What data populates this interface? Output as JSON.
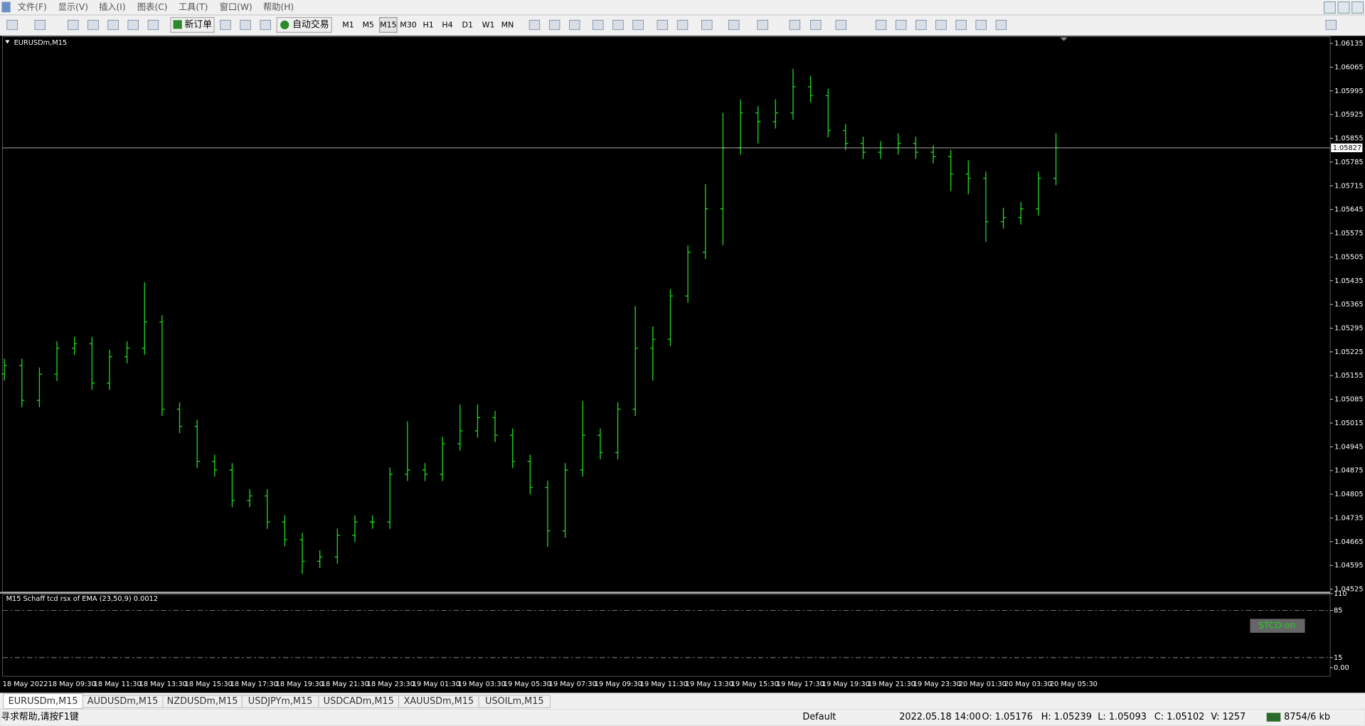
{
  "menu": [
    "文件(F)",
    "显示(V)",
    "插入(I)",
    "图表(C)",
    "工具(T)",
    "窗口(W)",
    "帮助(H)"
  ],
  "toolbar": {
    "new_order": "新订单",
    "auto_trading": "自动交易",
    "timeframes": [
      "M1",
      "M5",
      "M15",
      "M30",
      "H1",
      "H4",
      "D1",
      "W1",
      "MN"
    ]
  },
  "chart_data": {
    "type": "ohlc",
    "title": "EURUSDm,M15",
    "color": "#1fd31f",
    "open": [
      1.0516,
      1.05185,
      1.05082,
      1.05159,
      1.05236,
      1.05249,
      1.05133,
      1.05211,
      1.05236,
      1.05313,
      1.05056,
      1.05005,
      1.04902,
      1.04877,
      1.04787,
      1.048,
      1.04723,
      1.04671,
      1.04607,
      1.0462,
      1.04684,
      1.04723,
      1.04723,
      1.04864,
      1.04877,
      1.04864,
      1.04954,
      1.04992,
      1.05031,
      1.04979,
      1.04902,
      1.04825,
      1.04697,
      1.04877,
      1.04979,
      1.04928,
      1.05056,
      1.05236,
      1.05262,
      1.0539,
      1.05519,
      1.05647,
      1.05827,
      1.0593,
      1.05904,
      1.0593,
      1.06007,
      1.05981,
      1.05878,
      1.0584,
      1.05814,
      1.05827,
      1.0584,
      1.05814,
      1.05801,
      1.0575,
      1.05737,
      1.05609,
      1.05621,
      1.05647,
      1.05737
    ],
    "high": [
      1.05205,
      1.05205,
      1.05179,
      1.05256,
      1.05269,
      1.05269,
      1.05231,
      1.05256,
      1.0543,
      1.05333,
      1.05076,
      1.05025,
      1.04922,
      1.04897,
      1.0482,
      1.0482,
      1.04743,
      1.04691,
      1.0464,
      1.04704,
      1.04743,
      1.04743,
      1.04884,
      1.0502,
      1.04897,
      1.04974,
      1.0507,
      1.0507,
      1.05051,
      1.04999,
      1.04922,
      1.04845,
      1.04897,
      1.0508,
      1.04999,
      1.05076,
      1.0536,
      1.053,
      1.0541,
      1.05539,
      1.0572,
      1.0593,
      1.0597,
      1.0595,
      1.0597,
      1.0606,
      1.0604,
      1.06001,
      1.05898,
      1.0586,
      1.05847,
      1.0587,
      1.0586,
      1.05834,
      1.05821,
      1.0579,
      1.05757,
      1.0565,
      1.05667,
      1.05757,
      1.0587
    ],
    "low": [
      1.0514,
      1.05062,
      1.05062,
      1.05139,
      1.05216,
      1.05113,
      1.05113,
      1.05191,
      1.05216,
      1.05036,
      1.04985,
      1.04882,
      1.04857,
      1.04767,
      1.04767,
      1.04703,
      1.04651,
      1.0457,
      1.04587,
      1.046,
      1.04664,
      1.04703,
      1.04703,
      1.04844,
      1.04844,
      1.04844,
      1.04934,
      1.04972,
      1.04959,
      1.04882,
      1.04805,
      1.0465,
      1.04677,
      1.04857,
      1.04908,
      1.04908,
      1.05036,
      1.0514,
      1.05242,
      1.0537,
      1.05499,
      1.0554,
      1.05807,
      1.0584,
      1.05884,
      1.0591,
      1.05961,
      1.05858,
      1.0582,
      1.05794,
      1.05794,
      1.05807,
      1.05794,
      1.05781,
      1.057,
      1.0569,
      1.0555,
      1.05589,
      1.05601,
      1.05627,
      1.05717
    ],
    "close": [
      1.05185,
      1.05082,
      1.05159,
      1.05236,
      1.05249,
      1.05133,
      1.05211,
      1.05236,
      1.05313,
      1.05056,
      1.05005,
      1.04902,
      1.04877,
      1.04787,
      1.048,
      1.04723,
      1.04671,
      1.04607,
      1.0462,
      1.04684,
      1.04723,
      1.04723,
      1.04864,
      1.04877,
      1.04864,
      1.04954,
      1.04992,
      1.05031,
      1.04979,
      1.04902,
      1.04825,
      1.04697,
      1.04877,
      1.04979,
      1.04928,
      1.05056,
      1.05236,
      1.05262,
      1.0539,
      1.05519,
      1.05647,
      1.05827,
      1.0593,
      1.05904,
      1.0593,
      1.06007,
      1.05981,
      1.05878,
      1.0584,
      1.05814,
      1.05827,
      1.0584,
      1.05814,
      1.05801,
      1.0575,
      1.05737,
      1.05609,
      1.05621,
      1.05647,
      1.05737,
      1.05827
    ],
    "ylim": [
      1.04517,
      1.06155
    ],
    "yticks": [
      1.06135,
      1.06065,
      1.05995,
      1.05925,
      1.05855,
      1.05785,
      1.05715,
      1.05645,
      1.05575,
      1.05505,
      1.05435,
      1.05365,
      1.05295,
      1.05225,
      1.05155,
      1.05085,
      1.05015,
      1.04945,
      1.04875,
      1.04805,
      1.04735,
      1.04665,
      1.04595,
      1.04525
    ],
    "current_price": 1.05827,
    "x_labels": [
      "18 May 2022",
      "18 May 09:30",
      "18 May 11:30",
      "18 May 13:30",
      "18 May 15:30",
      "18 May 17:30",
      "18 May 19:30",
      "18 May 21:30",
      "18 May 23:30",
      "19 May 01:30",
      "19 May 03:30",
      "19 May 05:30",
      "19 May 07:30",
      "19 May 09:30",
      "19 May 11:30",
      "19 May 13:30",
      "19 May 15:30",
      "19 May 17:30",
      "19 May 19:30",
      "19 May 21:30",
      "19 May 23:30",
      "20 May 01:30",
      "20 May 03:30",
      "20 May 05:30"
    ]
  },
  "indicator": {
    "title": "M15 Schaff tcd rsx of EMA (23,50,9) 0.0012",
    "ylim": [
      -14,
      110
    ],
    "yticks": [
      110,
      85,
      15,
      {
        "value": 0,
        "label": "0.00"
      }
    ],
    "levels": [
      85,
      15
    ],
    "button": "STCD-on"
  },
  "tabs": [
    "EURUSDm,M15",
    "AUDUSDm,M15",
    "NZDUSDm,M15",
    "USDJPYm,M15",
    "USDCADm,M15",
    "XAUUSDm,M15",
    "USOILm,M15"
  ],
  "status": {
    "help": "寻求帮助,请按F1键",
    "profile": "Default",
    "time": "2022.05.18 14:00",
    "open": "O: 1.05176",
    "high": "H: 1.05239",
    "low": "L: 1.05093",
    "close": "C: 1.05102",
    "volume": "V: 1257",
    "traffic": "8754/6 kb"
  }
}
